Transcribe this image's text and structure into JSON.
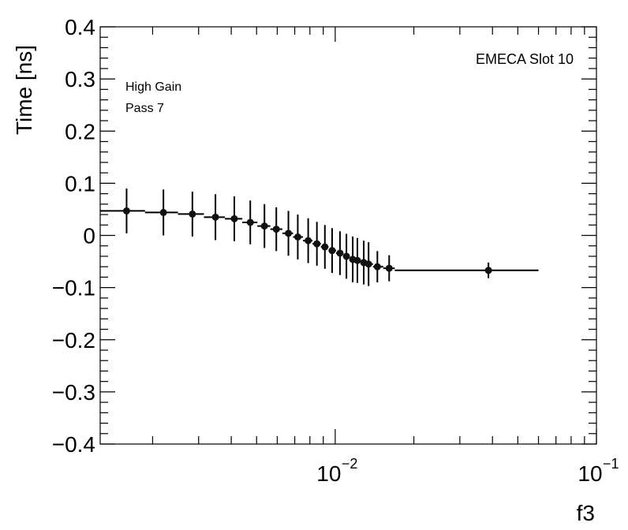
{
  "chart_data": {
    "type": "scatter",
    "xlabel": "f3",
    "ylabel": "Time [ns]",
    "xscale": "log",
    "xlim": [
      0.00126,
      0.1
    ],
    "ylim": [
      -0.4,
      0.4
    ],
    "yticks": [
      -0.4,
      -0.3,
      -0.2,
      -0.1,
      0,
      0.1,
      0.2,
      0.3,
      0.4
    ],
    "ytick_labels": [
      "−0.4",
      "−0.3",
      "−0.2",
      "−0.1",
      "0",
      "0.1",
      "0.2",
      "0.3",
      "0.4"
    ],
    "xticks": [
      0.01,
      0.1
    ],
    "xtick_labels": [
      {
        "base": "10",
        "exp": "−2"
      },
      {
        "base": "10",
        "exp": "−1"
      }
    ],
    "annotations": [
      "High Gain",
      "Pass 7",
      "EMECA Slot 10"
    ],
    "series": [
      {
        "name": "EMECA Slot 10",
        "x": [
          0.00159,
          0.0022,
          0.00284,
          0.00348,
          0.00411,
          0.00473,
          0.00536,
          0.00595,
          0.00662,
          0.00719,
          0.00788,
          0.00851,
          0.00913,
          0.00973,
          0.01043,
          0.01104,
          0.01167,
          0.01216,
          0.01286,
          0.01342,
          0.0145,
          0.01609,
          0.0386
        ],
        "y": [
          0.047,
          0.044,
          0.041,
          0.035,
          0.032,
          0.025,
          0.018,
          0.012,
          0.004,
          -0.003,
          -0.01,
          -0.016,
          -0.022,
          -0.029,
          -0.034,
          -0.04,
          -0.046,
          -0.048,
          -0.052,
          -0.055,
          -0.06,
          -0.063,
          -0.067
        ],
        "yerr": [
          0.043,
          0.044,
          0.043,
          0.044,
          0.043,
          0.042,
          0.042,
          0.042,
          0.043,
          0.043,
          0.043,
          0.042,
          0.042,
          0.043,
          0.042,
          0.043,
          0.044,
          0.043,
          0.042,
          0.042,
          0.03,
          0.025,
          0.015
        ],
        "last_bin": [
          0.0169,
          0.06
        ]
      }
    ]
  }
}
